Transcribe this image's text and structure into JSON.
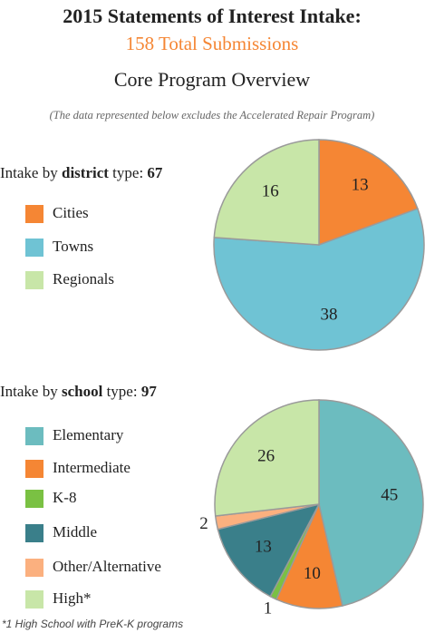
{
  "header": {
    "title": "2015 Statements of Interest Intake:",
    "subtitle": "158 Total Submissions",
    "section": "Core Program Overview",
    "note": "(The data represented below excludes the Accelerated Repair Program)"
  },
  "chart_data": [
    {
      "type": "pie",
      "title_parts": [
        "Intake by ",
        "district",
        " type: ",
        "67"
      ],
      "categories": [
        "Cities",
        "Towns",
        "Regionals"
      ],
      "values": [
        13,
        38,
        16
      ],
      "colors": [
        "#f58634",
        "#6fc3d4",
        "#c8e6a8"
      ]
    },
    {
      "type": "pie",
      "title_parts": [
        "Intake by ",
        "school",
        " type: ",
        "97"
      ],
      "categories": [
        "Elementary",
        "Intermediate",
        "K-8",
        "Middle",
        "Other/Alternative",
        "High*"
      ],
      "values": [
        45,
        10,
        1,
        13,
        2,
        26
      ],
      "colors": [
        "#6cbcbf",
        "#f58634",
        "#7ac143",
        "#3a7f8a",
        "#fbb07f",
        "#c8e6a8"
      ]
    }
  ],
  "footnote": "*1 High School with PreK-K programs"
}
